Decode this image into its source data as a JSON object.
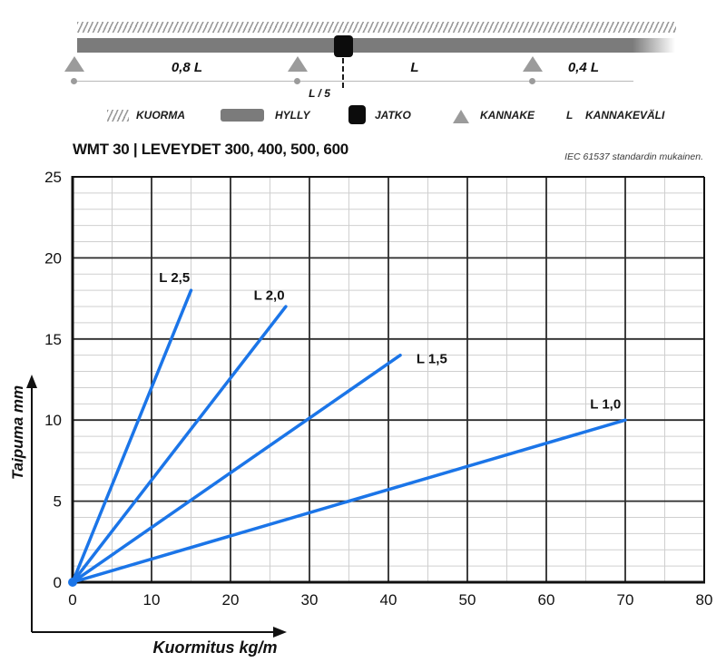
{
  "schematic": {
    "span_labels": {
      "first": "0,8 L",
      "second": "L",
      "third": "0,4 L",
      "fifth": "L / 5"
    },
    "legend": [
      {
        "label": "KUORMA"
      },
      {
        "label": "HYLLY"
      },
      {
        "label": "JATKO"
      },
      {
        "label": "KANNAKE"
      },
      {
        "symbol": "L",
        "label": "KANNAKEVÄLI"
      }
    ]
  },
  "header": {
    "title": "WMT 30 | LEVEYDET 300, 400, 500, 600",
    "note": "IEC 61537 standardin mukainen."
  },
  "chart_data": {
    "type": "line",
    "title": "WMT 30 | LEVEYDET 300, 400, 500, 600",
    "subtitle": "IEC 61537 standardin mukainen.",
    "xlabel": "Kuormitus kg/m",
    "ylabel": "Taipuma mm",
    "xlim": [
      0,
      80
    ],
    "ylim": [
      0,
      25
    ],
    "xticks": [
      0,
      10,
      20,
      30,
      40,
      50,
      60,
      70,
      80
    ],
    "yticks": [
      0,
      5,
      10,
      15,
      20,
      25
    ],
    "x_minor_step": 5,
    "y_minor_step": 1,
    "grid": true,
    "legend_position": "inline-labels",
    "line_color": "#1b75e8",
    "minor_grid_color": "#cfcfcf",
    "major_grid_color": "#2b2b2b",
    "axis_color": "#111111",
    "series": [
      {
        "name": "L 2,5",
        "points": [
          [
            0,
            0
          ],
          [
            15,
            18
          ]
        ],
        "label_at": [
          12.9,
          18.8
        ]
      },
      {
        "name": "L 2,0",
        "points": [
          [
            0,
            0
          ],
          [
            27,
            17
          ]
        ],
        "label_at": [
          24.9,
          17.7
        ]
      },
      {
        "name": "L 1,5",
        "points": [
          [
            0,
            0
          ],
          [
            41.5,
            14
          ]
        ],
        "label_at": [
          45.5,
          13.8
        ]
      },
      {
        "name": "L 1,0",
        "points": [
          [
            0,
            0
          ],
          [
            70,
            10
          ]
        ],
        "label_at": [
          67.5,
          11.0
        ]
      }
    ]
  }
}
